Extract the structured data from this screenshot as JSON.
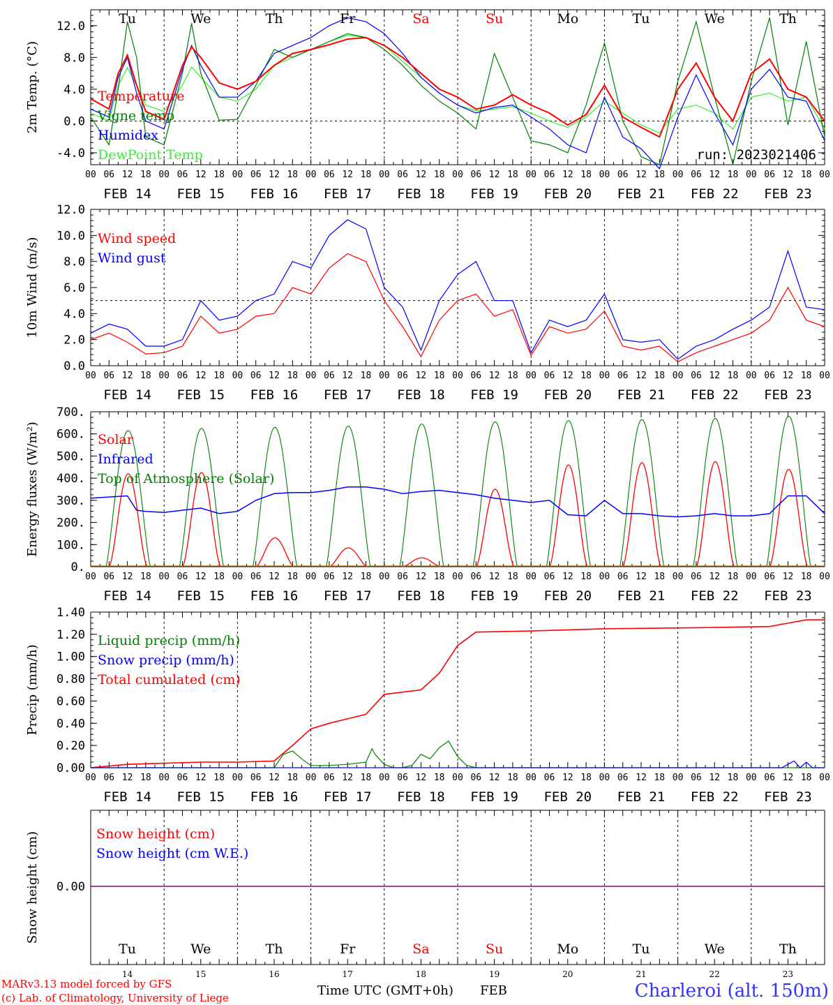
{
  "colors": {
    "red": "#ff0000",
    "darkgreen": "#008000",
    "blue": "#0000ff",
    "lightgreen": "#33ee33",
    "purple": "#800080",
    "black": "#000000"
  },
  "chart_data": [
    {
      "type": "line",
      "ylabel": "2m Temp. (°C)",
      "ylim": [
        -5.5,
        14.0
      ],
      "yticks": [
        -4.0,
        0.0,
        4.0,
        8.0,
        12.0
      ],
      "ytick_labels": [
        "-4.0",
        "0.0",
        "4.0",
        "8.0",
        "12.0"
      ],
      "refline": 0.0,
      "annotation": "run: 2023021406",
      "legend": [
        "Temperature",
        "Vigne temp",
        "Humidex",
        "DewPoint Temp"
      ],
      "weekdays": [
        "Tu",
        "We",
        "Th",
        "Fr",
        "Sa",
        "Su",
        "Mo",
        "Tu",
        "We",
        "Th"
      ],
      "series": [
        {
          "name": "Temperature",
          "color": "red",
          "x": [
            0,
            6,
            9,
            12,
            15,
            18,
            24,
            30,
            33,
            36,
            42,
            48,
            54,
            60,
            66,
            72,
            78,
            84,
            90,
            96,
            102,
            108,
            114,
            120,
            126,
            132,
            138,
            144,
            150,
            156,
            162,
            168,
            174,
            180,
            186,
            192,
            198,
            204,
            210,
            216,
            222,
            228,
            234,
            240
          ],
          "y": [
            2.8,
            1.5,
            6.0,
            8.3,
            4.5,
            1.2,
            0.2,
            7.0,
            9.3,
            8.0,
            4.8,
            4.0,
            5.0,
            7.0,
            8.5,
            9.0,
            9.6,
            10.3,
            10.5,
            9.5,
            8.0,
            6.0,
            4.0,
            3.0,
            1.5,
            2.0,
            3.3,
            2.0,
            1.0,
            -0.5,
            0.8,
            4.5,
            0.5,
            -0.8,
            -2.0,
            4.0,
            7.3,
            3.0,
            0.0,
            6.0,
            7.8,
            4.0,
            3.0,
            0.0
          ]
        },
        {
          "name": "Vigne temp",
          "color": "darkgreen",
          "x": [
            0,
            6,
            9,
            12,
            15,
            18,
            24,
            30,
            33,
            36,
            42,
            48,
            54,
            60,
            66,
            72,
            78,
            84,
            90,
            96,
            102,
            108,
            114,
            120,
            126,
            132,
            138,
            144,
            150,
            156,
            162,
            168,
            174,
            180,
            186,
            192,
            198,
            204,
            210,
            216,
            222,
            228,
            234,
            240
          ],
          "y": [
            0.5,
            -3.0,
            4.0,
            12.5,
            8.0,
            -2.0,
            -3.0,
            6.0,
            12.3,
            6.0,
            0.1,
            0.2,
            4.5,
            9.0,
            8.0,
            9.0,
            10.0,
            11.0,
            10.5,
            9.0,
            7.0,
            4.5,
            2.5,
            1.0,
            -1.0,
            8.5,
            3.0,
            -2.5,
            -3.0,
            -4.0,
            2.0,
            9.8,
            0.0,
            -4.5,
            -5.5,
            5.0,
            12.5,
            3.0,
            -5.5,
            5.0,
            13.0,
            -0.5,
            10.0,
            -2.0
          ]
        },
        {
          "name": "Humidex",
          "color": "blue",
          "x": [
            0,
            6,
            9,
            12,
            15,
            18,
            24,
            30,
            33,
            36,
            42,
            48,
            54,
            60,
            66,
            72,
            78,
            84,
            90,
            96,
            102,
            108,
            114,
            120,
            126,
            132,
            138,
            144,
            150,
            156,
            162,
            168,
            174,
            180,
            186,
            192,
            198,
            204,
            210,
            216,
            222,
            228,
            234,
            240
          ],
          "y": [
            1.5,
            0.5,
            5.5,
            8.0,
            3.5,
            0.0,
            -1.0,
            6.5,
            9.5,
            7.0,
            3.0,
            3.0,
            5.0,
            8.5,
            9.5,
            10.5,
            12.0,
            13.0,
            12.5,
            11.0,
            8.5,
            5.5,
            3.5,
            2.0,
            1.0,
            1.7,
            2.0,
            0.5,
            -1.0,
            -3.0,
            -4.0,
            3.0,
            -2.0,
            -3.5,
            -6.0,
            0.5,
            5.8,
            1.0,
            -3.0,
            4.0,
            6.5,
            3.0,
            2.5,
            -2.5
          ]
        },
        {
          "name": "DewPoint Temp",
          "color": "lightgreen",
          "x": [
            0,
            6,
            9,
            12,
            15,
            18,
            24,
            30,
            33,
            36,
            42,
            48,
            54,
            60,
            66,
            72,
            78,
            84,
            90,
            96,
            102,
            108,
            114,
            120,
            126,
            132,
            138,
            144,
            150,
            156,
            162,
            168,
            174,
            180,
            186,
            192,
            198,
            204,
            210,
            216,
            222,
            228,
            234,
            240
          ],
          "y": [
            1.0,
            0.0,
            4.5,
            6.7,
            4.5,
            2.0,
            1.2,
            4.5,
            6.8,
            5.5,
            3.0,
            2.5,
            4.0,
            7.0,
            8.0,
            9.0,
            10.0,
            10.8,
            10.5,
            9.5,
            7.5,
            5.5,
            3.5,
            2.0,
            1.3,
            1.5,
            1.8,
            1.0,
            0.0,
            -0.8,
            0.5,
            2.5,
            1.0,
            -0.5,
            -1.5,
            1.5,
            2.0,
            1.0,
            -1.0,
            3.0,
            3.5,
            2.5,
            3.0,
            -1.0
          ]
        }
      ]
    },
    {
      "type": "line",
      "ylabel": "10m Wind (m/s)",
      "ylim": [
        0.0,
        12.0
      ],
      "yticks": [
        0,
        2,
        4,
        6,
        8,
        10,
        12
      ],
      "ytick_labels": [
        "0.0",
        "2.0",
        "4.0",
        "6.0",
        "8.0",
        "10.0",
        "12.0"
      ],
      "refline": 5.0,
      "legend": [
        "Wind speed",
        "Wind gust"
      ],
      "series": [
        {
          "name": "Wind speed",
          "color": "red",
          "x": [
            0,
            6,
            12,
            18,
            24,
            30,
            36,
            42,
            48,
            54,
            60,
            66,
            72,
            78,
            84,
            90,
            96,
            102,
            108,
            114,
            120,
            126,
            132,
            138,
            144,
            150,
            156,
            162,
            168,
            174,
            180,
            186,
            192,
            198,
            204,
            210,
            216,
            222,
            228,
            234,
            240
          ],
          "y": [
            2.0,
            2.5,
            1.8,
            0.9,
            1.0,
            1.5,
            3.8,
            2.5,
            2.8,
            3.8,
            4.0,
            6.0,
            5.5,
            7.5,
            8.6,
            8.0,
            5.0,
            3.0,
            0.7,
            3.5,
            5.0,
            5.5,
            3.8,
            4.3,
            0.8,
            3.0,
            2.5,
            2.8,
            4.2,
            1.5,
            1.2,
            1.5,
            0.3,
            1.0,
            1.5,
            2.0,
            2.5,
            3.5,
            6.0,
            3.5,
            3.0
          ]
        },
        {
          "name": "Wind gust",
          "color": "blue",
          "x": [
            0,
            6,
            12,
            18,
            24,
            30,
            36,
            42,
            48,
            54,
            60,
            66,
            72,
            78,
            84,
            90,
            96,
            102,
            108,
            114,
            120,
            126,
            132,
            138,
            144,
            150,
            156,
            162,
            168,
            174,
            180,
            186,
            192,
            198,
            204,
            210,
            216,
            222,
            228,
            234,
            240
          ],
          "y": [
            2.5,
            3.2,
            2.8,
            1.5,
            1.5,
            2.0,
            5.0,
            3.5,
            3.8,
            5.0,
            5.5,
            8.0,
            7.5,
            10.0,
            11.2,
            10.5,
            6.0,
            4.5,
            1.2,
            5.0,
            7.0,
            8.0,
            5.0,
            5.0,
            1.0,
            3.5,
            3.0,
            3.5,
            5.5,
            2.0,
            1.8,
            2.0,
            0.5,
            1.5,
            2.0,
            2.8,
            3.5,
            4.5,
            8.8,
            4.5,
            4.3
          ]
        }
      ]
    },
    {
      "type": "line",
      "ylabel": "Energy fluxes (W/m²)",
      "ylim": [
        0,
        700
      ],
      "yticks": [
        0,
        100,
        200,
        300,
        400,
        500,
        600,
        700
      ],
      "ytick_labels": [
        "0.",
        "100.",
        "200.",
        "300.",
        "400.",
        "500.",
        "600.",
        "700."
      ],
      "legend": [
        "Solar",
        "Infrared",
        "Top of Atmosphere (Solar)"
      ],
      "toa_peaks": [
        615,
        625,
        630,
        635,
        645,
        655,
        660,
        665,
        670,
        680
      ],
      "solar_peaks": [
        420,
        425,
        130,
        85,
        40,
        350,
        460,
        470,
        475,
        440
      ],
      "series": [
        {
          "name": "Solar",
          "color": "red",
          "note": "daytime bell curves"
        },
        {
          "name": "Infrared",
          "color": "blue",
          "x": [
            0,
            6,
            12,
            15,
            18,
            24,
            30,
            36,
            42,
            48,
            54,
            60,
            66,
            72,
            78,
            84,
            90,
            96,
            102,
            108,
            114,
            120,
            126,
            132,
            138,
            144,
            150,
            156,
            162,
            168,
            174,
            180,
            186,
            192,
            198,
            204,
            210,
            216,
            222,
            228,
            234,
            240
          ],
          "y": [
            310,
            315,
            320,
            255,
            250,
            245,
            255,
            265,
            240,
            250,
            300,
            330,
            335,
            335,
            345,
            360,
            360,
            350,
            330,
            340,
            345,
            335,
            325,
            310,
            300,
            290,
            300,
            235,
            230,
            300,
            240,
            240,
            230,
            225,
            230,
            240,
            230,
            230,
            240,
            320,
            320,
            240
          ]
        },
        {
          "name": "Top of Atmosphere (Solar)",
          "color": "darkgreen",
          "note": "daytime bell curves"
        }
      ]
    },
    {
      "type": "line",
      "ylabel": "Precip (mm/h)",
      "ylim": [
        0.0,
        1.4
      ],
      "yticks": [
        0,
        0.2,
        0.4,
        0.6,
        0.8,
        1.0,
        1.2,
        1.4
      ],
      "ytick_labels": [
        "0.00",
        "0.20",
        "0.40",
        "0.60",
        "0.80",
        "1.00",
        "1.20",
        "1.40"
      ],
      "legend": [
        "Liquid precip (mm/h)",
        "Snow precip (mm/h)",
        "Total cumulated (cm)"
      ],
      "series": [
        {
          "name": "Total cumulated (cm)",
          "color": "red",
          "x": [
            0,
            12,
            24,
            36,
            48,
            60,
            66,
            72,
            78,
            84,
            90,
            96,
            102,
            108,
            114,
            120,
            126,
            144,
            168,
            200,
            222,
            228,
            234,
            240
          ],
          "y": [
            0.0,
            0.03,
            0.04,
            0.05,
            0.05,
            0.06,
            0.2,
            0.35,
            0.4,
            0.44,
            0.48,
            0.66,
            0.68,
            0.7,
            0.85,
            1.1,
            1.22,
            1.23,
            1.25,
            1.26,
            1.27,
            1.3,
            1.33,
            1.33
          ]
        },
        {
          "name": "Liquid precip (mm/h)",
          "color": "darkgreen",
          "x": [
            0,
            60,
            63,
            66,
            69,
            72,
            78,
            84,
            90,
            92,
            93,
            96,
            99,
            102,
            105,
            108,
            111,
            114,
            117,
            120,
            123,
            126,
            240
          ],
          "y": [
            0,
            0,
            0.12,
            0.15,
            0.08,
            0.02,
            0.02,
            0.03,
            0.05,
            0.17,
            0.12,
            0.03,
            0.0,
            0.0,
            0.02,
            0.12,
            0.08,
            0.18,
            0.24,
            0.1,
            0.02,
            0.0,
            0.0
          ]
        },
        {
          "name": "Snow precip (mm/h)",
          "color": "blue",
          "x": [
            0,
            226,
            228,
            230,
            232,
            234,
            236,
            240
          ],
          "y": [
            0,
            0,
            0.03,
            0.06,
            0.0,
            0.05,
            0.0,
            0.0
          ]
        }
      ]
    },
    {
      "type": "line",
      "ylabel": "Snow height (cm)",
      "ytick_labels": [
        "0.00"
      ],
      "legend": [
        "Snow height (cm)",
        "Snow height (cm W.E.)"
      ],
      "series": [
        {
          "name": "Snow height (cm)",
          "color": "red",
          "x": [
            0,
            240
          ],
          "y": [
            0,
            0
          ]
        },
        {
          "name": "Snow height (cm W.E.)",
          "color": "blue",
          "x": [
            0,
            240
          ],
          "y": [
            0,
            0
          ]
        }
      ]
    }
  ],
  "hour_labels": [
    "00",
    "06",
    "12",
    "18"
  ],
  "final_hour_label": "00",
  "dates": [
    "FEB 14",
    "FEB 15",
    "FEB 16",
    "FEB 17",
    "FEB 18",
    "FEB 19",
    "FEB 20",
    "FEB 21",
    "FEB 22",
    "FEB 23"
  ],
  "bottom_weekdays": [
    "Tu",
    "We",
    "Th",
    "Fr",
    "Sa",
    "Su",
    "Mo",
    "Tu",
    "We",
    "Th"
  ],
  "weekend_indices": [
    4,
    5
  ],
  "day_numbers": [
    "14",
    "15",
    "16",
    "17",
    "18",
    "19",
    "20",
    "21",
    "22",
    "23"
  ],
  "xlabel": "Time UTC (GMT+0h)",
  "month": "FEB",
  "credits": {
    "line1": "MARv3.13 model forced by GFS",
    "line2": "(c) Lab. of Climatology, University of Liege"
  },
  "location": "Charleroi (alt. 150m)"
}
